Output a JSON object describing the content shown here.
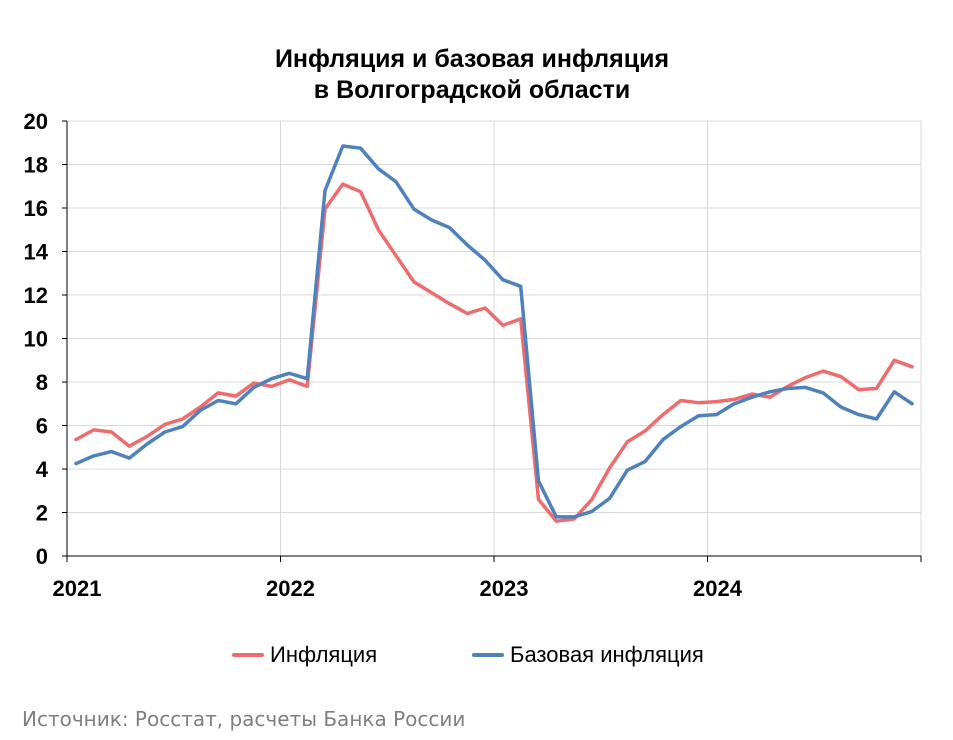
{
  "chart_data": {
    "type": "line",
    "title_line1": "Инфляция и базовая инфляция",
    "title_line2": "в Волгоградской области",
    "ylim": [
      0,
      20
    ],
    "yticks": [
      "0",
      "2",
      "4",
      "6",
      "8",
      "10",
      "12",
      "14",
      "16",
      "18",
      "20"
    ],
    "xtick_labels": [
      "2021",
      "2022",
      "2023",
      "2024"
    ],
    "grid": "on",
    "legend_position": "bottom",
    "x": [
      "01.2021",
      "02.2021",
      "03.2021",
      "04.2021",
      "05.2021",
      "06.2021",
      "07.2021",
      "08.2021",
      "09.2021",
      "10.2021",
      "11.2021",
      "12.2021",
      "01.2022",
      "02.2022",
      "03.2022",
      "04.2022",
      "05.2022",
      "06.2022",
      "07.2022",
      "08.2022",
      "09.2022",
      "10.2022",
      "11.2022",
      "12.2022",
      "01.2023",
      "02.2023",
      "03.2023",
      "04.2023",
      "05.2023",
      "06.2023",
      "07.2023",
      "08.2023",
      "09.2023",
      "10.2023",
      "11.2023",
      "12.2023",
      "01.2024",
      "02.2024",
      "03.2024",
      "04.2024",
      "05.2024",
      "06.2024",
      "07.2024",
      "08.2024",
      "09.2024",
      "10.2024",
      "11.2024",
      "12.2024"
    ],
    "series": [
      {
        "name": "Инфляция",
        "color": "#ee6b6e",
        "values": [
          5.35,
          5.8,
          5.7,
          5.05,
          5.5,
          6.05,
          6.3,
          6.85,
          7.5,
          7.35,
          7.95,
          7.8,
          8.1,
          7.8,
          15.95,
          17.1,
          16.75,
          15.0,
          13.8,
          12.6,
          12.1,
          11.6,
          11.15,
          11.4,
          10.6,
          10.9,
          2.6,
          1.6,
          1.7,
          2.6,
          4.05,
          5.25,
          5.75,
          6.5,
          7.15,
          7.05,
          7.1,
          7.2,
          7.45,
          7.3,
          7.8,
          8.2,
          8.5,
          8.25,
          7.65,
          7.7,
          9.0,
          8.7
        ]
      },
      {
        "name": "Базовая инфляция",
        "color": "#4f81bd",
        "values": [
          4.25,
          4.6,
          4.8,
          4.5,
          5.15,
          5.7,
          5.95,
          6.7,
          7.15,
          7.0,
          7.75,
          8.15,
          8.4,
          8.15,
          16.8,
          18.85,
          18.75,
          17.8,
          17.2,
          15.95,
          15.45,
          15.1,
          14.3,
          13.6,
          12.7,
          12.4,
          3.45,
          1.8,
          1.8,
          2.05,
          2.65,
          3.95,
          4.35,
          5.35,
          5.95,
          6.45,
          6.5,
          7.0,
          7.3,
          7.55,
          7.7,
          7.75,
          7.5,
          6.85,
          6.5,
          6.3,
          7.55,
          7.0
        ]
      }
    ]
  },
  "legend": {
    "item1_label": "Инфляция",
    "item2_label": "Базовая инфляция"
  },
  "source": "Источник: Росстат, расчеты Банка России"
}
